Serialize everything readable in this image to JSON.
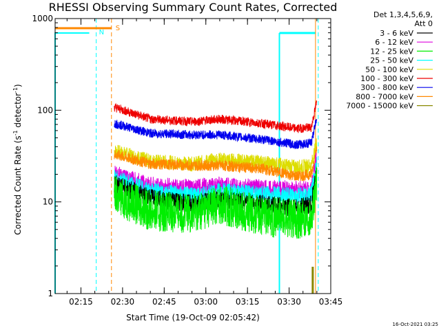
{
  "chart_data": {
    "type": "line",
    "title": "RHESSI Observing Summary Count Rates, Corrected",
    "xlabel": "Start Time (19-Oct-09 02:05:42)",
    "ylabel": "Corrected Count Rate (s⁻¹ detector⁻¹)",
    "ylabel_main": "Corrected Count Rate (s",
    "ylabel_sup1": "-1",
    "ylabel_mid": " detector",
    "ylabel_sup2": "-1",
    "ylabel_end": ")",
    "y_scale": "log",
    "ylim": [
      1,
      1000
    ],
    "y_ticks": [
      {
        "value": 1,
        "label": "1"
      },
      {
        "value": 10,
        "label": "10"
      },
      {
        "value": 100,
        "label": "100"
      },
      {
        "value": 1000,
        "label": "1000"
      }
    ],
    "xlim": [
      "02:05:42",
      "03:45:00"
    ],
    "x_ticks": [
      "02:15",
      "02:30",
      "02:45",
      "03:00",
      "03:15",
      "03:30",
      "03:45"
    ],
    "legend_placement": "right, outside plot",
    "legend_header": [
      "Det 1,3,4,5,6,9,",
      "Att 0"
    ],
    "series": [
      {
        "name": "3 - 6 keV",
        "color": "#000000",
        "x": [
          "02:27",
          "02:40",
          "02:55",
          "03:05",
          "03:20",
          "03:33",
          "03:38",
          "03:40"
        ],
        "values": [
          16,
          11,
          9.5,
          10.5,
          9.5,
          8.5,
          9.5,
          22
        ]
      },
      {
        "name": "6 - 12 keV",
        "color": "#dd00dd",
        "x": [
          "02:27",
          "02:40",
          "02:55",
          "03:05",
          "03:20",
          "03:33",
          "03:38",
          "03:40"
        ],
        "values": [
          20,
          15,
          14,
          15,
          14,
          13.5,
          14,
          32
        ]
      },
      {
        "name": "12 - 25 keV",
        "color": "#00ee00",
        "x": [
          "02:27",
          "02:40",
          "02:55",
          "03:05",
          "03:20",
          "03:33",
          "03:38",
          "03:40"
        ],
        "values": [
          12,
          8,
          7.5,
          9.5,
          7,
          6.5,
          7,
          17
        ]
      },
      {
        "name": "25 - 50 keV",
        "color": "#00ffff",
        "x": [
          "02:27",
          "02:40",
          "02:55",
          "03:05",
          "03:20",
          "03:33",
          "03:38",
          "03:40"
        ],
        "values": [
          18,
          13,
          11.5,
          13,
          12,
          11.5,
          12,
          28
        ]
      },
      {
        "name": "50 - 100 keV",
        "color": "#dddd00",
        "x": [
          "02:27",
          "02:40",
          "02:55",
          "03:05",
          "03:20",
          "03:33",
          "03:38",
          "03:40"
        ],
        "values": [
          36,
          28,
          26,
          29,
          27,
          24,
          25,
          45
        ]
      },
      {
        "name": "100 - 300 keV",
        "color": "#ee0000",
        "x": [
          "02:27",
          "02:40",
          "02:55",
          "03:05",
          "03:20",
          "03:33",
          "03:38",
          "03:40"
        ],
        "values": [
          108,
          80,
          75,
          80,
          72,
          63,
          65,
          125
        ]
      },
      {
        "name": "300 - 800 keV",
        "color": "#0000ee",
        "x": [
          "02:27",
          "02:40",
          "02:55",
          "03:05",
          "03:20",
          "03:33",
          "03:38",
          "03:40"
        ],
        "values": [
          72,
          56,
          54,
          54,
          48,
          42,
          44,
          85
        ]
      },
      {
        "name": "800 - 7000 keV",
        "color": "#ff8800",
        "x": [
          "02:27",
          "02:40",
          "02:55",
          "03:05",
          "03:20",
          "03:33",
          "03:38",
          "03:40"
        ],
        "values": [
          33,
          26,
          25,
          25,
          23,
          19,
          20,
          38
        ]
      },
      {
        "name": "7000 - 15000 keV",
        "color": "#888800",
        "x": [],
        "values": []
      }
    ],
    "annotations": [
      {
        "text": "S",
        "color": "#ff8800"
      },
      {
        "text": "N",
        "color": "#00ffff"
      }
    ]
  },
  "footer_timestamp": "16-Oct-2021 03:25"
}
